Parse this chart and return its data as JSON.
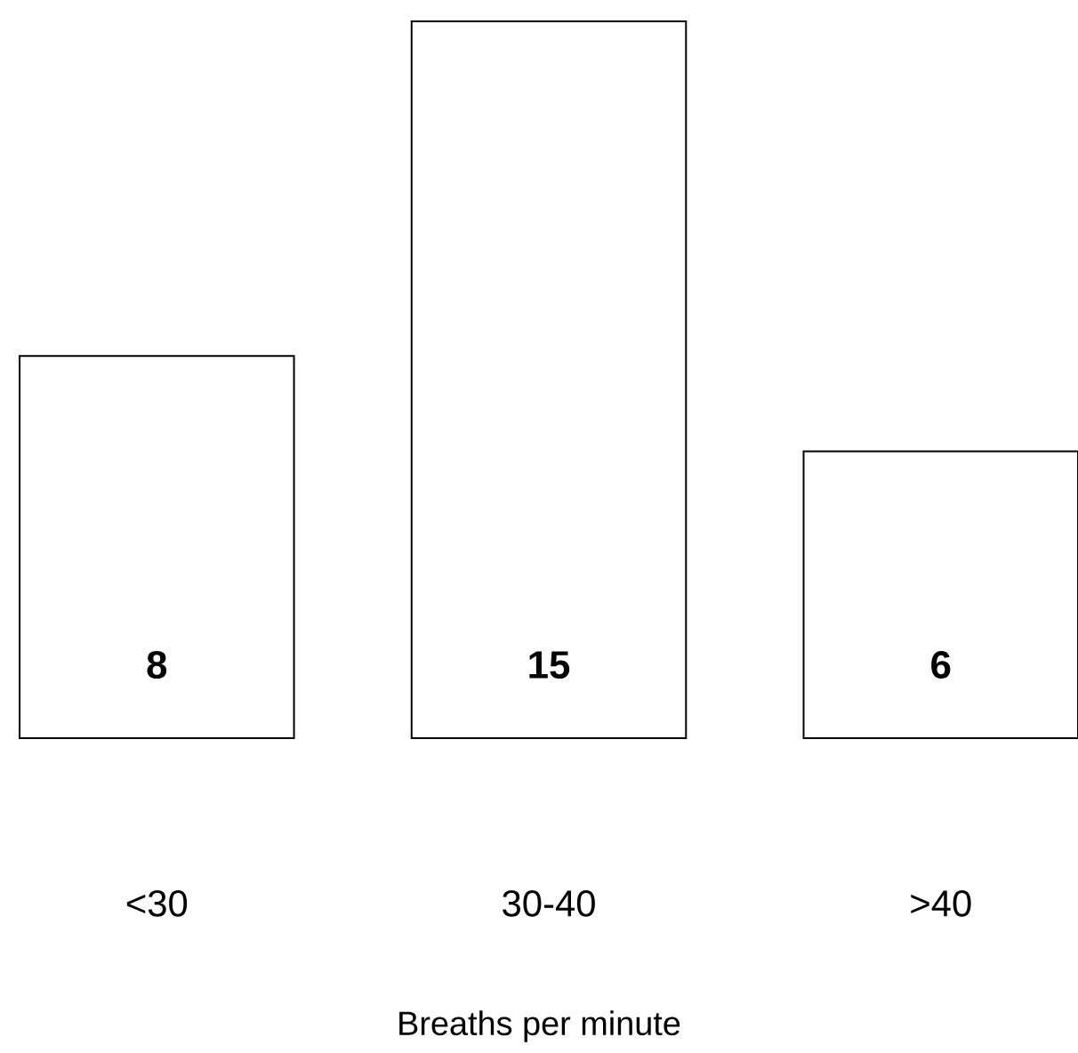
{
  "chart_data": {
    "type": "bar",
    "xlabel": "Breaths per minute",
    "categories": [
      "<30",
      "30-40",
      ">40"
    ],
    "values": [
      8,
      15,
      6
    ],
    "data_labels": true
  }
}
